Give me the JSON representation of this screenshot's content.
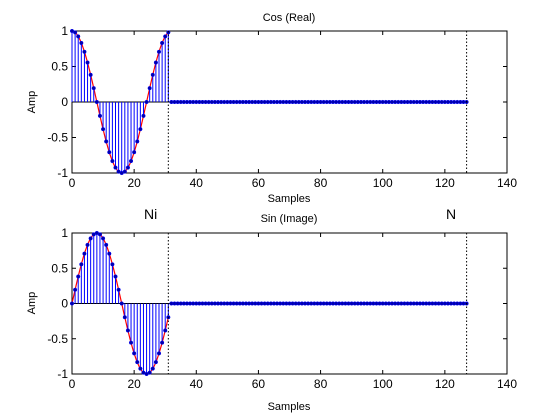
{
  "chart_data": [
    {
      "type": "stem",
      "title": "Cos (Real)",
      "xlabel": "Samples",
      "ylabel": "Amp",
      "xlim": [
        0,
        140
      ],
      "ylim": [
        -1,
        1
      ],
      "xticks": [
        "0",
        "20",
        "40",
        "60",
        "80",
        "100",
        "120",
        "140"
      ],
      "yticks": [
        "-1",
        "-0.5",
        "0",
        "0.5",
        "1"
      ],
      "series": [
        {
          "function": "cos",
          "period_samples": 32,
          "nonzero_samples": [
            0,
            31
          ],
          "total_samples": [
            0,
            127
          ]
        }
      ],
      "colors": {
        "stem": "#0000ff",
        "marker": "#0000aa",
        "curve": "#ff0000"
      },
      "vlines": [
        31,
        127
      ]
    },
    {
      "type": "stem",
      "title": "Sin (Image)",
      "xlabel": "Samples",
      "ylabel": "Amp",
      "xlim": [
        0,
        140
      ],
      "ylim": [
        -1,
        1
      ],
      "xticks": [
        "0",
        "20",
        "40",
        "60",
        "80",
        "100",
        "120",
        "140"
      ],
      "yticks": [
        "-1",
        "-0.5",
        "0",
        "0.5",
        "1"
      ],
      "series": [
        {
          "function": "sin",
          "period_samples": 32,
          "nonzero_samples": [
            0,
            31
          ],
          "total_samples": [
            0,
            127
          ]
        }
      ],
      "colors": {
        "stem": "#0000ff",
        "marker": "#0000aa",
        "curve": "#ff0000"
      },
      "vlines": [
        31,
        127
      ]
    }
  ],
  "annotations": {
    "ni_label": "Ni",
    "n_label": "N"
  }
}
